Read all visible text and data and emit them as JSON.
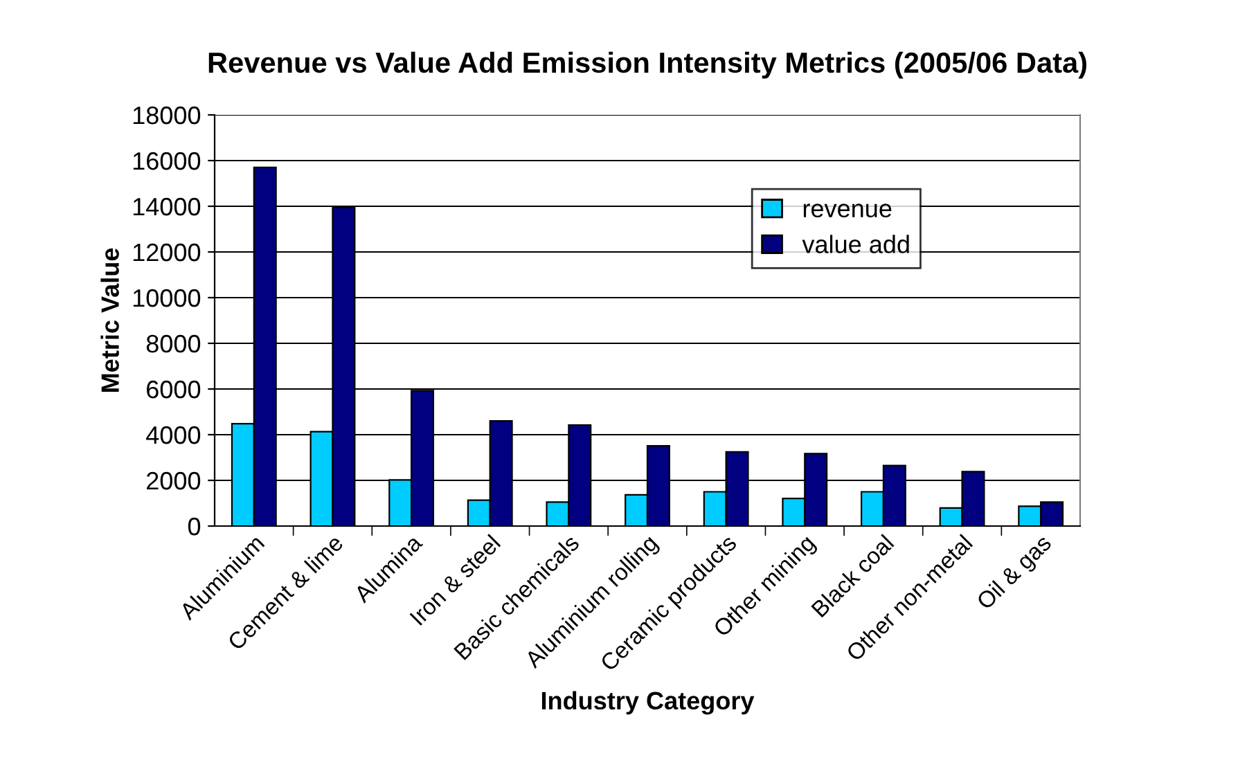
{
  "chart_data": {
    "type": "bar",
    "title": "Revenue vs Value Add Emission Intensity Metrics (2005/06 Data)",
    "xlabel": "Industry Category",
    "ylabel": "Metric Value",
    "categories": [
      "Aluminium",
      "Cement & lime",
      "Alumina",
      "Iron & steel",
      "Basic chemicals",
      "Aluminium rolling",
      "Ceramic products",
      "Other mining",
      "Black coal",
      "Other non-metal",
      "Oil & gas"
    ],
    "series": [
      {
        "name": "revenue",
        "color": "#00ccff",
        "values": [
          4480,
          4130,
          2020,
          1130,
          1050,
          1370,
          1500,
          1210,
          1500,
          790,
          870
        ]
      },
      {
        "name": "value add",
        "color": "#000080",
        "values": [
          15700,
          13950,
          5930,
          4600,
          4420,
          3510,
          3250,
          3170,
          2650,
          2380,
          1050
        ]
      }
    ],
    "ylim": [
      0,
      18000
    ],
    "yticks": [
      0,
      2000,
      4000,
      6000,
      8000,
      10000,
      12000,
      14000,
      16000,
      18000
    ],
    "grid": "y",
    "legend": "top right"
  }
}
